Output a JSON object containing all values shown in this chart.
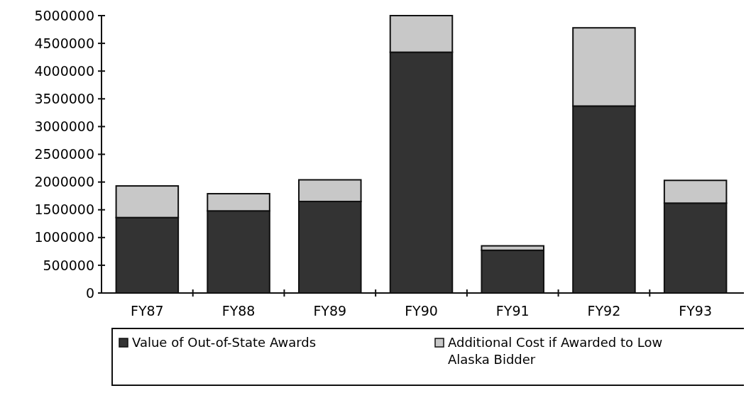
{
  "chart_data": {
    "type": "bar",
    "stacked": true,
    "categories": [
      "FY87",
      "FY88",
      "FY89",
      "FY90",
      "FY91",
      "FY92",
      "FY93"
    ],
    "series": [
      {
        "name": "Value of Out-of-State Awards",
        "color": "#333333",
        "values": [
          1360000,
          1480000,
          1650000,
          4340000,
          770000,
          3370000,
          1620000
        ]
      },
      {
        "name": "Additional Cost if Awarded to Low Alaska Bidder",
        "color": "#c8c8c8",
        "values": [
          570000,
          310000,
          390000,
          660000,
          80000,
          1410000,
          410000
        ]
      }
    ],
    "ylim": [
      0,
      5000000
    ],
    "yticks": [
      0,
      500000,
      1000000,
      1500000,
      2000000,
      2500000,
      3000000,
      3500000,
      4000000,
      4500000,
      5000000
    ],
    "legend": "bottom"
  }
}
